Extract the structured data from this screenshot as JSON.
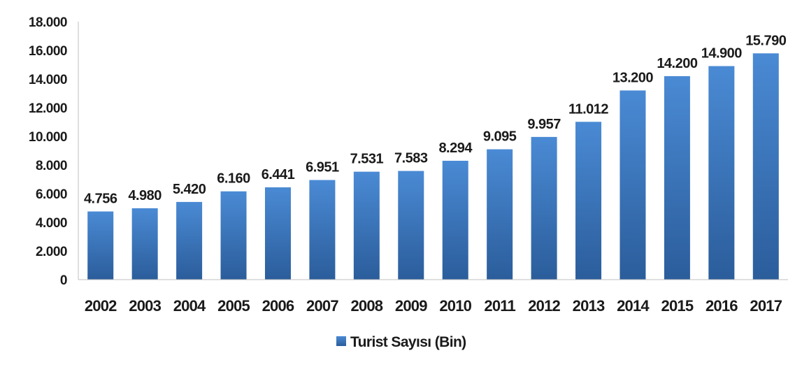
{
  "chart_data": {
    "type": "bar",
    "categories": [
      "2002",
      "2003",
      "2004",
      "2005",
      "2006",
      "2007",
      "2008",
      "2009",
      "2010",
      "2011",
      "2012",
      "2013",
      "2014",
      "2015",
      "2016",
      "2017"
    ],
    "series": [
      {
        "name": "Turist Sayısı (Bin)",
        "values": [
          4756,
          4980,
          5420,
          6160,
          6441,
          6951,
          7531,
          7583,
          8294,
          9095,
          9957,
          11012,
          13200,
          14200,
          14900,
          15790
        ],
        "labels": [
          "4.756",
          "4.980",
          "5.420",
          "6.160",
          "6.441",
          "6.951",
          "7.531",
          "7.583",
          "8.294",
          "9.095",
          "9.957",
          "11.012",
          "13.200",
          "14.200",
          "14.900",
          "15.790"
        ]
      }
    ],
    "yticks": [
      0,
      2000,
      4000,
      6000,
      8000,
      10000,
      12000,
      14000,
      16000,
      18000
    ],
    "ytick_labels": [
      "0",
      "2.000",
      "4.000",
      "6.000",
      "8.000",
      "10.000",
      "12.000",
      "14.000",
      "16.000",
      "18.000"
    ],
    "ylim": [
      0,
      18000
    ],
    "legend_position": "bottom",
    "colors": {
      "bar_top": "#4a8ad4",
      "bar_bottom": "#2b5d9b",
      "axis": "#bfbfbf"
    }
  }
}
